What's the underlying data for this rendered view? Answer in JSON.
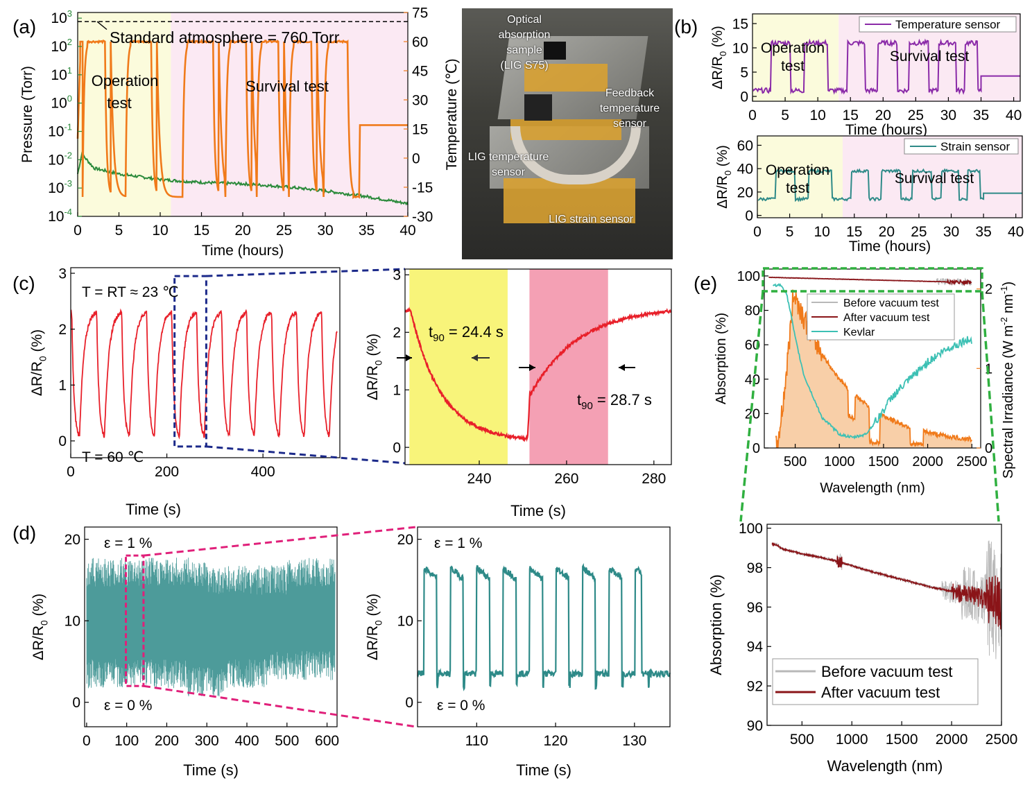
{
  "panel_labels": {
    "a": "(a)",
    "b": "(b)",
    "c": "(c)",
    "d": "(d)",
    "e": "(e)"
  },
  "colors": {
    "green": "#2a8a3a",
    "orange": "#f07a1a",
    "yellow_bg": "#fbfbdc",
    "pink_bg": "#fbe9f3",
    "purple": "#8a2aa8",
    "teal": "#2e8a88",
    "red": "#e8202a",
    "navy": "#1c2a8a",
    "magenta": "#e0207a",
    "darkred": "#8a1418",
    "cyan": "#3cc0b4",
    "lightgray": "#b8b8b8",
    "c_yellow": "#f8f47a",
    "c_pink": "#f4a0b4",
    "dashgreen": "#30b040"
  },
  "photo": {
    "labels": {
      "optical": [
        "Optical",
        "absorption",
        "sample",
        "(LIG S75)"
      ],
      "feedback": [
        "Feedback",
        "temperature",
        "sensor"
      ],
      "ligtemp": [
        "LIG temperature",
        "sensor"
      ],
      "ligstrain": "LIG strain sensor"
    }
  },
  "chart_data": [
    {
      "id": "a",
      "type": "line",
      "xlabel": "Time (hours)",
      "ylabel": "Pressure (Torr)",
      "y2label": "Temperature (℃)",
      "xlim": [
        0,
        40
      ],
      "xticks": [
        "0",
        "5",
        "10",
        "15",
        "20",
        "25",
        "30",
        "35",
        "40"
      ],
      "ylog_ticks": [
        "10",
        "10",
        "10",
        "10",
        "10",
        "10",
        "10",
        "10"
      ],
      "ylog_exps": [
        "-4",
        "-3",
        "-2",
        "-1",
        "0",
        "1",
        "2",
        "3"
      ],
      "y2lim": [
        -30,
        75
      ],
      "y2ticks": [
        "-30",
        "-15",
        "0",
        "15",
        "30",
        "45",
        "60",
        "75"
      ],
      "annotation": "Standard atmosphere = 760 Torr",
      "region1": "Operation",
      "region1b": "test",
      "region2": "Survival test",
      "shade_x": [
        0,
        11.3,
        40
      ],
      "temperature_series": {
        "name": "Temperature",
        "cycles": [
          [
            0.6,
            3.3
          ],
          [
            5.8,
            8.9
          ],
          [
            12.7,
            16.4
          ],
          [
            17.9,
            20.4
          ],
          [
            21.7,
            24.3
          ],
          [
            25.6,
            28.3
          ],
          [
            29.8,
            32.7
          ]
        ],
        "high": 60,
        "low": -20,
        "end_x": 34.2,
        "end_value": 17
      },
      "pressure_series": {
        "name": "Pressure",
        "x": [
          0,
          0.5,
          2,
          5,
          10,
          15,
          20,
          25,
          30,
          35,
          40
        ],
        "log10": [
          -2.5,
          -1.8,
          -2.3,
          -2.5,
          -2.7,
          -2.8,
          -2.85,
          -2.95,
          -3.1,
          -3.3,
          -3.55
        ]
      }
    },
    {
      "id": "b1",
      "type": "line",
      "xlabel": "Time (hours)",
      "ylabel": "ΔR/R",
      "xlim": [
        0,
        41
      ],
      "ylim": [
        -1,
        17
      ],
      "xticks": [
        "0",
        "5",
        "10",
        "15",
        "20",
        "25",
        "30",
        "35",
        "40"
      ],
      "yticks": [
        "0",
        "5",
        "10",
        "15"
      ],
      "legend": "Temperature sensor",
      "region1": "Operation",
      "region1b": "test",
      "region2": "Survival test",
      "shade_x": [
        0,
        13.2,
        41
      ],
      "high": 11,
      "low": 1.2,
      "end_value": 4.2
    },
    {
      "id": "b2",
      "type": "line",
      "xlabel": "Time (hours)",
      "ylabel": "ΔR/R",
      "xlim": [
        0,
        41
      ],
      "ylim": [
        -2,
        68
      ],
      "xticks": [
        "0",
        "5",
        "10",
        "15",
        "20",
        "25",
        "30",
        "35",
        "40"
      ],
      "yticks": [
        "0",
        "20",
        "40",
        "60"
      ],
      "legend": "Strain sensor",
      "region1": "Operation",
      "region1b": "test",
      "region2": "Survival test",
      "shade_x": [
        0,
        13.2,
        41
      ],
      "high": 38,
      "low": 14,
      "end_value": 19
    },
    {
      "id": "c1",
      "type": "line",
      "xlabel": "Time (s)",
      "ylabel": "ΔR/R",
      "xlim": [
        0,
        560
      ],
      "ylim": [
        -0.3,
        3.1
      ],
      "xticks": [
        "0",
        "200",
        "400"
      ],
      "yticks": [
        "0",
        "1",
        "2",
        "3"
      ],
      "note_top": "T = RT ≈ 23 ℃",
      "note_bottom": "T = 60 ℃",
      "period": 52,
      "high": 2.35,
      "low": 0.02
    },
    {
      "id": "c2",
      "type": "line",
      "xlabel": "Time (s)",
      "ylabel": "ΔR/R",
      "xlim": [
        223,
        284
      ],
      "ylim": [
        -0.3,
        3.1
      ],
      "xticks": [
        "240",
        "260",
        "280"
      ],
      "yticks": [
        "0",
        "1",
        "2",
        "3"
      ],
      "t90_a": "t",
      "t90_a_val": " = 24.4 s",
      "t90_b": "t",
      "t90_b_val": " = 28.7 s",
      "sub90": "90",
      "yellow_span": [
        224,
        246.5
      ],
      "pink_span": [
        251.5,
        269.5
      ]
    },
    {
      "id": "d1",
      "type": "line",
      "xlabel": "Time (s)",
      "ylabel": "ΔR/R",
      "xlim": [
        -5,
        625
      ],
      "ylim": [
        -3,
        21.5
      ],
      "xticks": [
        "0",
        "100",
        "200",
        "300",
        "400",
        "500",
        "600"
      ],
      "yticks": [
        "0",
        "10",
        "20"
      ],
      "note_top": "ε = 1 %",
      "note_bottom": "ε = 0 %",
      "high": 16,
      "low": 3.5
    },
    {
      "id": "d2",
      "type": "line",
      "xlabel": "Time (s)",
      "ylabel": "ΔR/R",
      "xlim": [
        102.5,
        134.5
      ],
      "ylim": [
        -3,
        21.5
      ],
      "xticks": [
        "110",
        "120",
        "130"
      ],
      "yticks": [
        "0",
        "10",
        "20"
      ],
      "note_top": "ε = 1 %",
      "note_bottom": "ε = 0 %",
      "high": 16.5,
      "low": 3.5,
      "period": 3.35,
      "start": 103.3
    },
    {
      "id": "e1",
      "type": "line",
      "xlabel": "Wavelength (nm)",
      "ylabel": "Absorption (%)",
      "y2label": "Spectral Irradiance (W m",
      "xlim": [
        150,
        2600
      ],
      "ylim": [
        0,
        104
      ],
      "xticks": [
        "500",
        "1000",
        "1500",
        "2000",
        "2500"
      ],
      "yticks": [
        "0",
        "20",
        "40",
        "60",
        "80",
        "100"
      ],
      "y2ticks": [
        "0",
        "1",
        "2"
      ],
      "legend": [
        "Before vacuum test",
        "After vacuum test",
        "Kevlar"
      ],
      "kevlar_x": [
        250,
        300,
        350,
        400,
        450,
        500,
        600,
        800,
        1000,
        1150,
        1300,
        1450,
        1600,
        1800,
        2000,
        2200,
        2400,
        2500
      ],
      "kevlar_y": [
        94,
        95,
        94,
        90,
        78,
        64,
        42,
        18,
        8,
        6,
        8,
        18,
        30,
        40,
        50,
        57,
        62,
        63
      ],
      "solar_peak_nm": 480,
      "solar_peak": 1.95
    },
    {
      "id": "e2",
      "type": "line",
      "xlabel": "Wavelength (nm)",
      "ylabel": "Absorption (%)",
      "xlim": [
        150,
        2500
      ],
      "ylim": [
        90,
        100.2
      ],
      "xticks": [
        "500",
        "1000",
        "1500",
        "2000",
        "2500"
      ],
      "yticks": [
        "90",
        "92",
        "94",
        "96",
        "98",
        "100"
      ],
      "legend": [
        "Before vacuum test",
        "After vacuum test"
      ],
      "after_x": [
        200,
        250,
        300,
        500,
        800,
        1000,
        1200,
        1500,
        1800,
        2000,
        2200,
        2400,
        2500
      ],
      "after_y": [
        99.2,
        99.15,
        98.95,
        98.7,
        98.4,
        98.1,
        97.8,
        97.4,
        97.0,
        96.8,
        96.6,
        96.3,
        96.2
      ]
    }
  ]
}
